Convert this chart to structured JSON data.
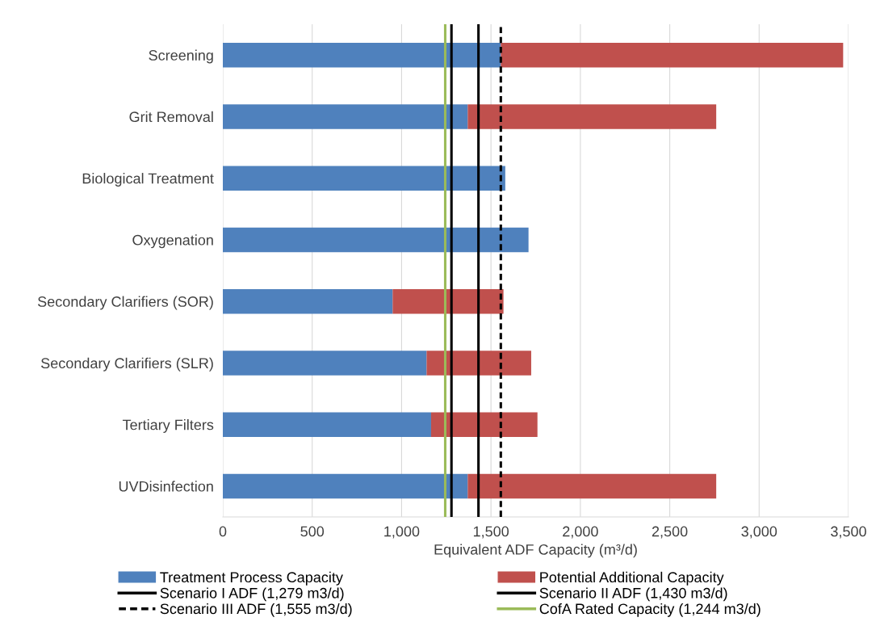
{
  "chart_data": {
    "type": "bar",
    "orientation": "horizontal",
    "stacked": true,
    "categories": [
      "Screening",
      "Grit Removal",
      "Biological Treatment",
      "Oxygenation",
      "Secondary Clarifiers (SOR)",
      "Secondary Clarifiers (SLR)",
      "Tertiary Filters",
      "UVDisinfection"
    ],
    "series": [
      {
        "name": "Treatment Process Capacity",
        "color": "#4f81bd",
        "values": [
          1555,
          1370,
          1580,
          1710,
          950,
          1140,
          1165,
          1370
        ]
      },
      {
        "name": "Potential Additional Capacity",
        "color": "#c0504d",
        "values": [
          1915,
          1390,
          null,
          null,
          620,
          585,
          595,
          1390
        ]
      }
    ],
    "xlabel": "Equivalent ADF Capacity (m³/d)",
    "xlim": [
      0,
      3500
    ],
    "xticks": [
      0,
      500,
      {
        "value": 1000,
        "label": "1,000"
      },
      {
        "value": 1500,
        "label": "1,500"
      },
      {
        "value": 2000,
        "label": "2,000"
      },
      {
        "value": 2500,
        "label": "2,500"
      },
      {
        "value": 3000,
        "label": "3,000"
      },
      {
        "value": 3500,
        "label": "3,500"
      }
    ],
    "grid": "x",
    "legend": "bottom",
    "ref_lines": [
      {
        "axis": "x",
        "value": 1279,
        "label": "Scenario I ADF (1,279 m3/d)",
        "color": "#000000",
        "line_style": "solid"
      },
      {
        "axis": "x",
        "value": 1430,
        "label": "Scenario II ADF (1,430 m3/d)",
        "color": "#000000",
        "line_style": "solid"
      },
      {
        "axis": "x",
        "value": 1555,
        "label": "Scenario III ADF (1,555 m3/d)",
        "color": "#000000",
        "line_style": "dashed"
      },
      {
        "axis": "x",
        "value": 1244,
        "label": "CofA Rated Capacity (1,244 m3/d)",
        "color": "#9bbb59",
        "line_style": "solid"
      }
    ]
  }
}
